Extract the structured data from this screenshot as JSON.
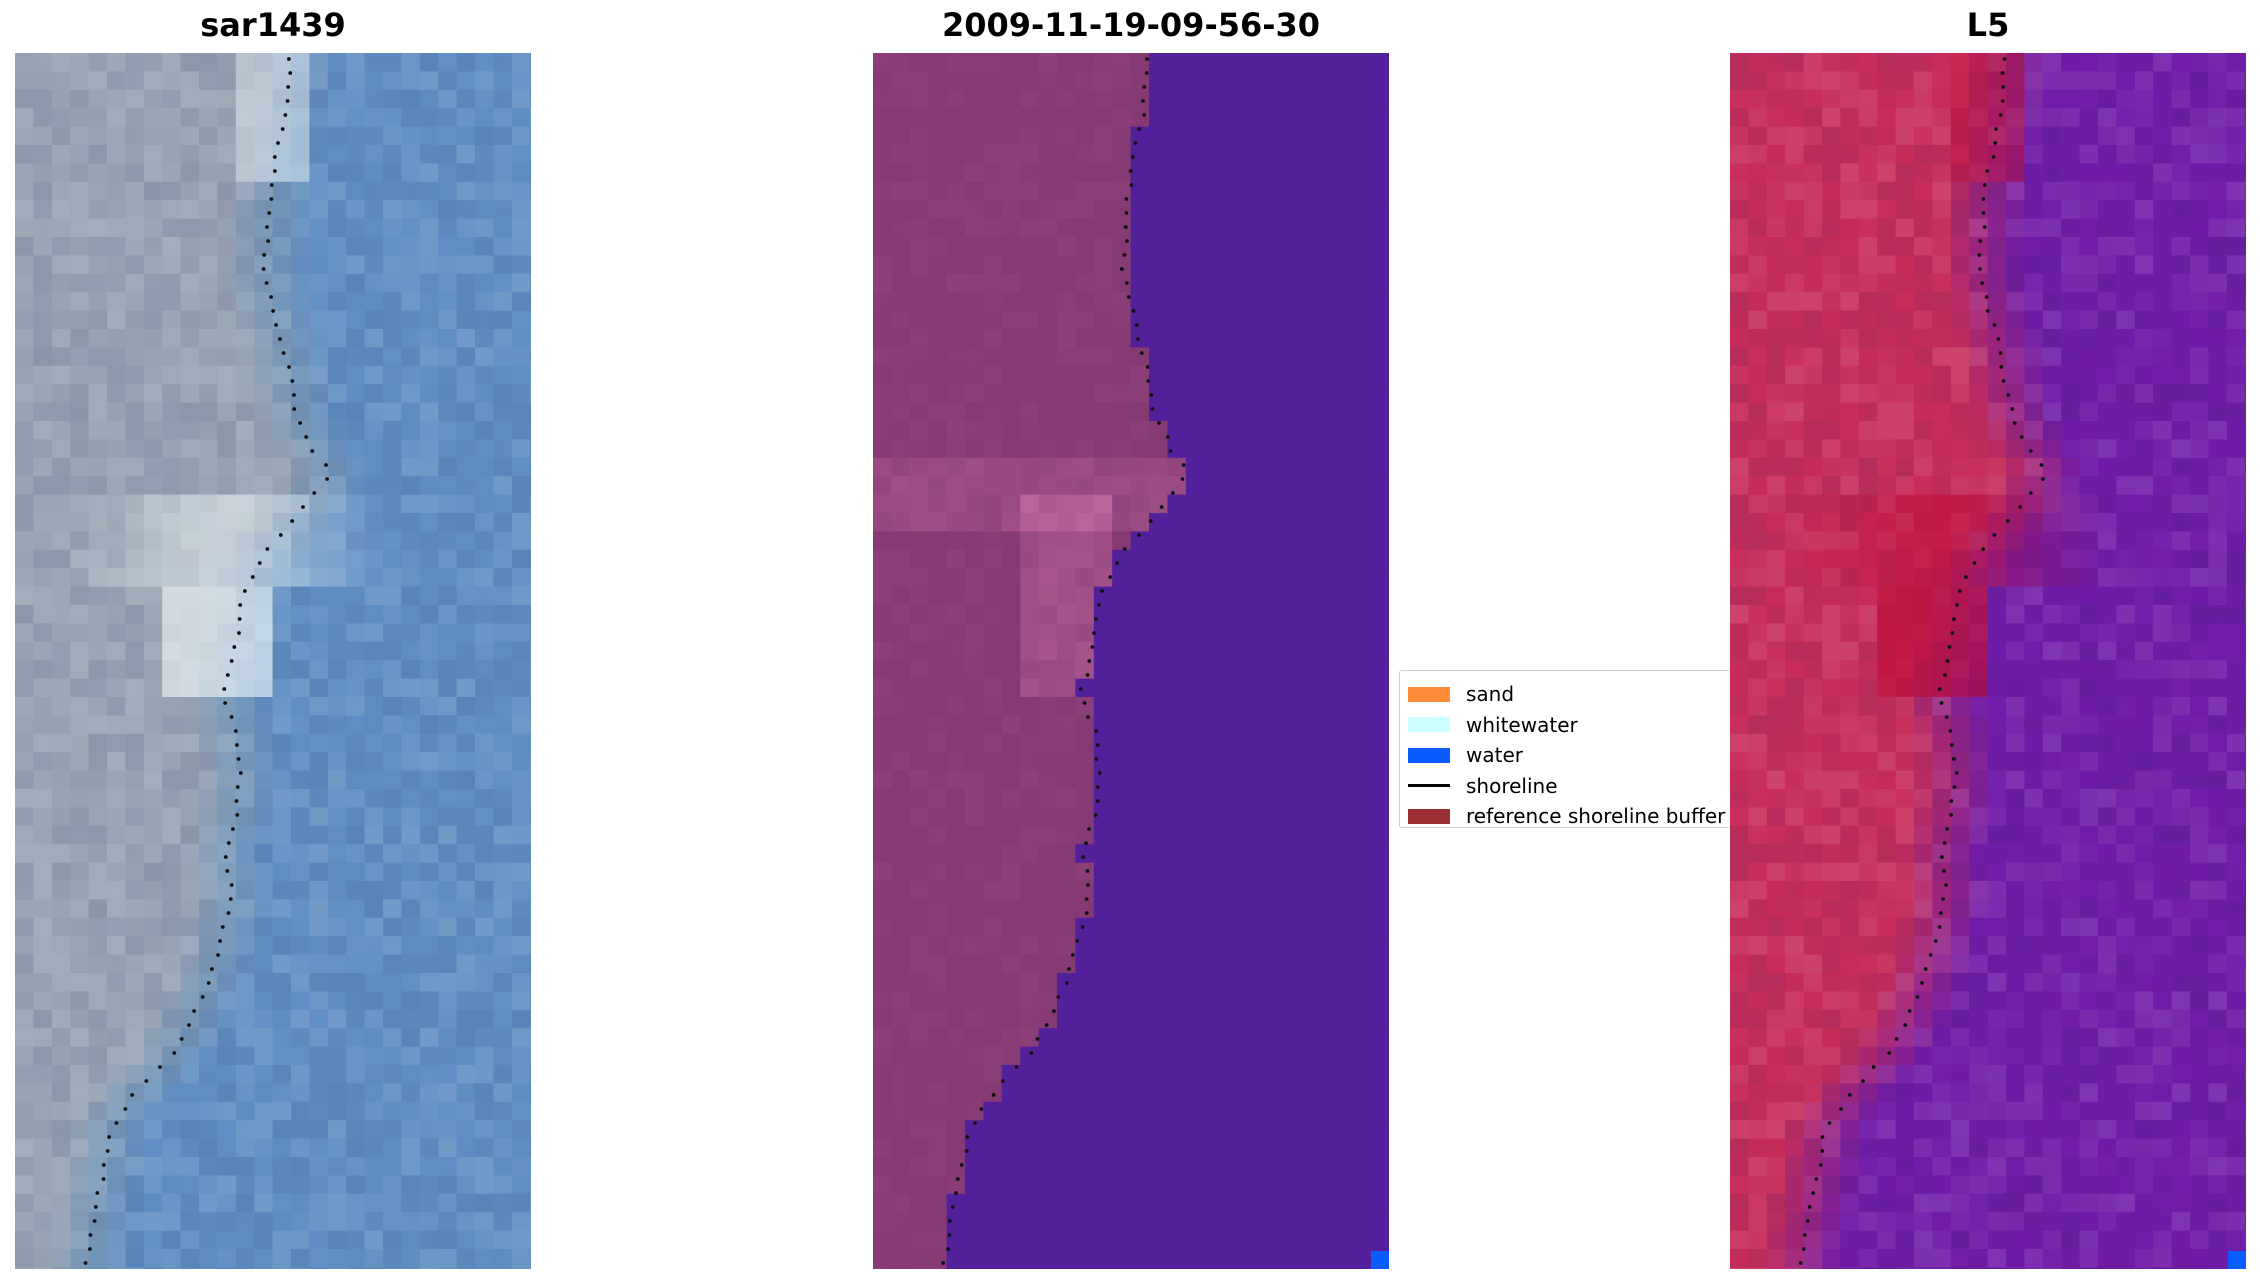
{
  "panels": [
    {
      "title": "sar1439"
    },
    {
      "title": "2009-11-19-09-56-30"
    },
    {
      "title": "L5"
    }
  ],
  "legend": {
    "items": [
      {
        "label": "sand",
        "color": "#ff8c3a"
      },
      {
        "label": "whitewater",
        "color": "#ccffff"
      },
      {
        "label": "water",
        "color": "#0a5cff"
      },
      {
        "label": "shoreline",
        "color": "#000000"
      },
      {
        "label": "reference shoreline buffer",
        "color": "#9c2f33"
      }
    ]
  },
  "colors": {
    "water_tint": "#5f8fc2",
    "land_tint": "#97a4b3",
    "class_land": "#853a74",
    "class_water": "#53209b",
    "mndwi_land": "#c72c5a",
    "mndwi_water": "#6f1ca8"
  }
}
